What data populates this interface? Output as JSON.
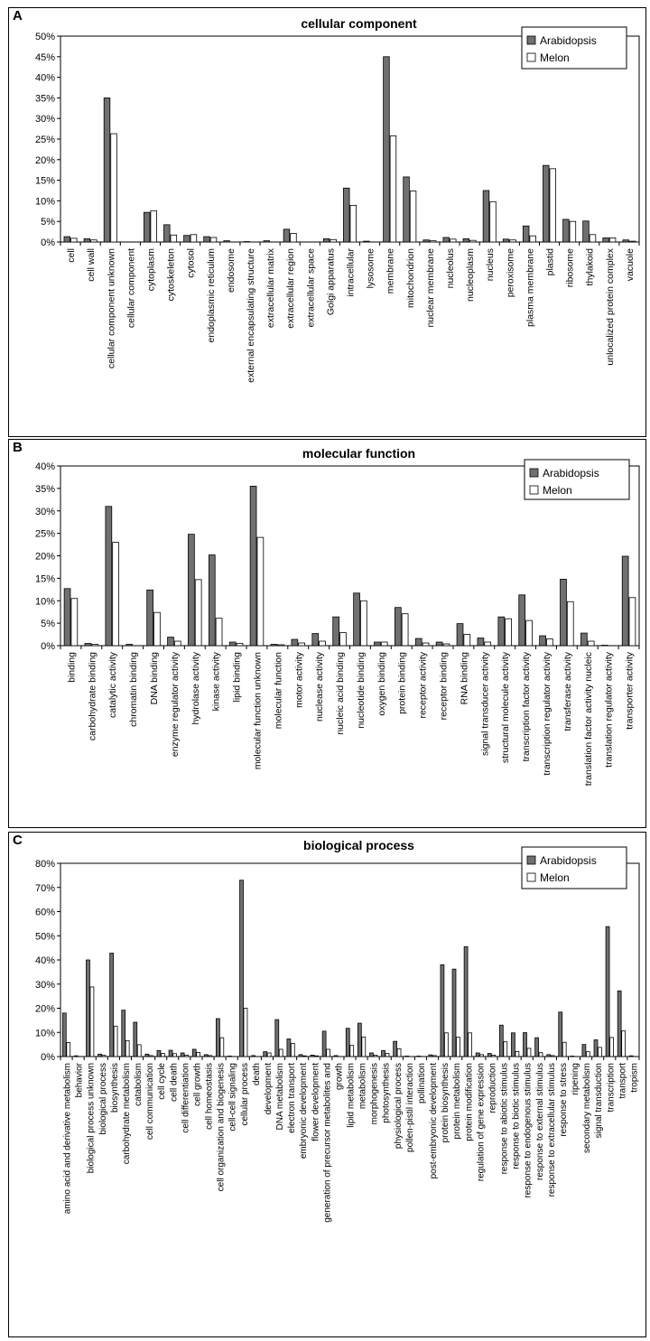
{
  "colors": {
    "arabidopsis": "#707070",
    "melon": "#ffffff",
    "stroke": "#000000"
  },
  "chart_data": [
    {
      "panel": "A",
      "type": "bar",
      "title": "cellular component",
      "ylim": [
        0,
        50
      ],
      "yticks": [
        "0%",
        "5%",
        "10%",
        "15%",
        "20%",
        "25%",
        "30%",
        "35%",
        "40%",
        "45%",
        "50%"
      ],
      "legend": {
        "placement": "top-right",
        "entries": [
          "Arabidopsis",
          "Melon"
        ]
      },
      "categories": [
        "cell",
        "cell wall",
        "cellular component unknown",
        "cellular component",
        "cytoplasm",
        "cytoskeleton",
        "cytosol",
        "endoplasmic reticulum",
        "endosome",
        "external encapsulating structure",
        "extracellular matrix",
        "extracellular region",
        "extracellular space",
        "Golgi apparatus",
        "intracellular",
        "lysosome",
        "membrane",
        "mitochondrion",
        "nuclear membrane",
        "nucleolus",
        "nucleoplasm",
        "nucleus",
        "peroxisome",
        "plasma membrane",
        "plastid",
        "ribosome",
        "thylakoid",
        "unlocalized protein complex",
        "vacuole"
      ],
      "series": [
        {
          "name": "Arabidopsis",
          "values": [
            1.3,
            0.8,
            35.0,
            0.0,
            7.2,
            4.2,
            1.6,
            1.3,
            0.3,
            0.1,
            0.3,
            3.1,
            0.0,
            0.8,
            13.1,
            0.2,
            45.0,
            15.8,
            0.5,
            1.1,
            0.8,
            12.5,
            0.7,
            3.9,
            18.6,
            5.5,
            5.1,
            1.0,
            0.5
          ]
        },
        {
          "name": "Melon",
          "values": [
            0.9,
            0.5,
            26.3,
            0.0,
            7.6,
            1.7,
            1.8,
            1.1,
            0.0,
            0.0,
            0.0,
            2.1,
            0.0,
            0.6,
            8.9,
            0.0,
            25.8,
            12.4,
            0.3,
            0.7,
            0.4,
            9.8,
            0.5,
            1.5,
            17.8,
            5.0,
            1.8,
            1.0,
            0.2
          ]
        }
      ]
    },
    {
      "panel": "B",
      "type": "bar",
      "title": "molecular function",
      "ylim": [
        0,
        40
      ],
      "yticks": [
        "0%",
        "5%",
        "10%",
        "15%",
        "20%",
        "25%",
        "30%",
        "35%",
        "40%"
      ],
      "legend": {
        "placement": "top-right",
        "entries": [
          "Arabidopsis",
          "Melon"
        ]
      },
      "categories": [
        "binding",
        "carbohydrate binding",
        "catalytic activity",
        "chromatin binding",
        "DNA binding",
        "enzyme regulator activity",
        "hydrolase activity",
        "kinase activity",
        "lipid binding",
        "molecular function unknown",
        "molecular function",
        "motor activity",
        "nuclease activity",
        "nucleic acid binding",
        "nucleotide binding",
        "oxygen binding",
        "protein binding",
        "receptor activity",
        "receptor binding",
        "RNA binding",
        "signal transducer activity",
        "structural molecule activity",
        "transcription factor activity",
        "transcription regulator activity",
        "transferase activity",
        "translation factor activity nucleic",
        "translation regulator activity",
        "transporter activity"
      ],
      "series": [
        {
          "name": "Arabidopsis",
          "values": [
            12.7,
            0.5,
            31.0,
            0.3,
            12.4,
            1.9,
            24.8,
            20.2,
            0.8,
            35.5,
            0.3,
            1.4,
            2.7,
            6.4,
            11.7,
            0.8,
            8.5,
            1.6,
            0.8,
            4.9,
            1.7,
            6.4,
            11.3,
            2.2,
            14.8,
            2.8,
            0.1,
            19.9
          ]
        },
        {
          "name": "Melon",
          "values": [
            10.5,
            0.3,
            23.0,
            0.0,
            7.4,
            1.0,
            14.7,
            6.1,
            0.5,
            24.1,
            0.2,
            0.6,
            1.0,
            2.9,
            10.0,
            0.8,
            7.1,
            0.6,
            0.4,
            2.5,
            0.8,
            6.0,
            5.6,
            1.5,
            9.8,
            1.0,
            0.0,
            10.7
          ]
        }
      ]
    },
    {
      "panel": "C",
      "type": "bar",
      "title": "biological process",
      "ylim": [
        0,
        80
      ],
      "yticks": [
        "0%",
        "10%",
        "20%",
        "30%",
        "40%",
        "50%",
        "60%",
        "70%",
        "80%"
      ],
      "legend": {
        "placement": "top-right",
        "entries": [
          "Arabidopsis",
          "Melon"
        ]
      },
      "categories": [
        "amino acid and derivative metabolism",
        "behavior",
        "biological process unknown",
        "biological process",
        "biosynthesis",
        "carbohydrate metabolism",
        "catabolism",
        "cell communication",
        "cell cycle",
        "cell death",
        "cell differentiation",
        "cell growth",
        "cell homeostasis",
        "cell organization and biogenesis",
        "cell-cell signaling",
        "cellular process",
        "death",
        "development",
        "DNA metabolism",
        "electron transport",
        "embryonic development",
        "flower development",
        "generation of precursor metabolites and",
        "growth",
        "lipid metabolism",
        "metabolism",
        "morphogenesis",
        "photosynthesis",
        "physiological process",
        "pollen-pistil interaction",
        "pollination",
        "post-embryonic development",
        "protein biosynthesis",
        "protein metabolism",
        "protein modification",
        "regulation of gene expression",
        "reproduction",
        "response to abiotic stimulus",
        "response to biotic stimulus",
        "response to endogenous stimulus",
        "response to external stimulus",
        "response to extracellular stimulus",
        "response to stress",
        "ripening",
        "secondary metabolism",
        "signal transduction",
        "transcription",
        "transport",
        "tropism"
      ],
      "series": [
        {
          "name": "Arabidopsis",
          "values": [
            18.0,
            0.3,
            40.0,
            1.0,
            42.8,
            19.2,
            14.2,
            1.0,
            2.5,
            2.6,
            1.5,
            3.0,
            0.8,
            15.7,
            0.2,
            73.0,
            0.4,
            2.0,
            15.3,
            7.3,
            0.8,
            0.6,
            10.5,
            0.4,
            11.7,
            13.8,
            1.5,
            2.5,
            6.3,
            0.2,
            0.2,
            0.7,
            38.0,
            36.2,
            45.5,
            1.5,
            1.3,
            13.0,
            9.8,
            9.9,
            7.8,
            0.8,
            18.4,
            0.2,
            5.0,
            6.9,
            53.8,
            27.2,
            0.3
          ]
        },
        {
          "name": "Melon",
          "values": [
            5.8,
            0.0,
            28.8,
            0.5,
            12.6,
            6.6,
            4.9,
            0.4,
            1.3,
            1.2,
            0.6,
            1.7,
            0.4,
            7.8,
            0.0,
            20.0,
            0.0,
            1.5,
            3.0,
            5.4,
            0.3,
            0.3,
            3.0,
            0.0,
            4.6,
            8.1,
            0.6,
            1.3,
            3.2,
            0.0,
            0.0,
            0.4,
            9.8,
            8.0,
            9.8,
            0.8,
            0.6,
            6.1,
            2.1,
            3.4,
            1.6,
            0.4,
            5.9,
            0.0,
            2.0,
            3.8,
            7.9,
            10.6,
            0.0
          ]
        }
      ]
    }
  ]
}
